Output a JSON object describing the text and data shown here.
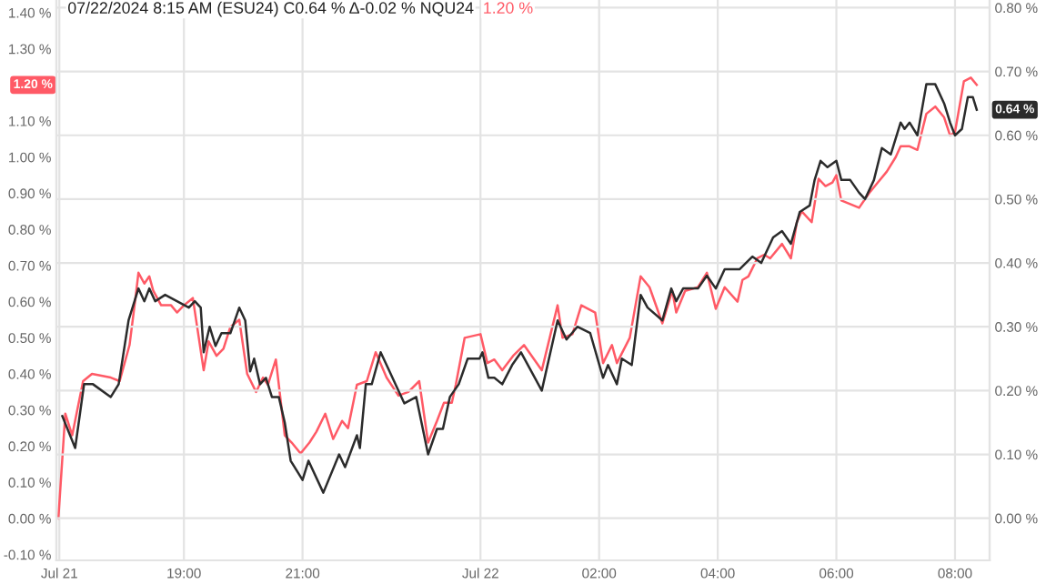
{
  "chart_data": {
    "type": "line",
    "title": "07/22/2024 8:15 AM (ESU24) C0.64 % Δ-0.02 % NQU24",
    "subtitle": "1.20 %",
    "xlim": [
      "2024-07-21T16:51",
      "2024-07-22T08:35"
    ],
    "xticks": [
      {
        "value": "2024-07-21T16:54",
        "label": "Jul 21"
      },
      {
        "value": "2024-07-21T19:00",
        "label": "19:00"
      },
      {
        "value": "2024-07-21T21:00",
        "label": "21:00"
      },
      {
        "value": "2024-07-22T00:00",
        "label": "Jul 22"
      },
      {
        "value": "2024-07-22T02:00",
        "label": "02:00"
      },
      {
        "value": "2024-07-22T04:00",
        "label": "04:00"
      },
      {
        "value": "2024-07-22T06:00",
        "label": "06:00"
      },
      {
        "value": "2024-07-22T08:00",
        "label": "08:00"
      }
    ],
    "ylim": [
      -0.116,
      1.435
    ],
    "yticks": [
      {
        "value": -0.1,
        "label": "-0.10 %"
      },
      {
        "value": 0,
        "label": "0.00 %"
      },
      {
        "value": 0.1,
        "label": "0.10 %"
      },
      {
        "value": 0.2,
        "label": "0.20 %"
      },
      {
        "value": 0.3,
        "label": "0.30 %"
      },
      {
        "value": 0.4,
        "label": "0.40 %"
      },
      {
        "value": 0.5,
        "label": "0.50 %"
      },
      {
        "value": 0.6,
        "label": "0.60 %"
      },
      {
        "value": 0.7,
        "label": "0.70 %"
      },
      {
        "value": 0.8,
        "label": "0.80 %"
      },
      {
        "value": 0.9,
        "label": "0.90 %"
      },
      {
        "value": 1.0,
        "label": "1.00 %"
      },
      {
        "value": 1.1,
        "label": "1.10 %"
      },
      {
        "value": 1.3,
        "label": "1.30 %"
      },
      {
        "value": 1.4,
        "label": "1.40 %"
      }
    ],
    "y2lim": [
      -0.066,
      0.812
    ],
    "y2ticks": [
      {
        "value": 0,
        "label": "0.00 %"
      },
      {
        "value": 0.1,
        "label": "0.10 %"
      },
      {
        "value": 0.2,
        "label": "0.20 %"
      },
      {
        "value": 0.3,
        "label": "0.30 %"
      },
      {
        "value": 0.4,
        "label": "0.40 %"
      },
      {
        "value": 0.5,
        "label": "0.50 %"
      },
      {
        "value": 0.6,
        "label": "0.60 %"
      },
      {
        "value": 0.7,
        "label": "0.70 %"
      },
      {
        "value": 0.8,
        "label": "0.80 %"
      }
    ],
    "grid": true,
    "annotations": [
      "1.20 %",
      "0.64 %"
    ],
    "series": [
      {
        "color": "#ff5a66",
        "axis": "y",
        "x": [
          "2024-07-21T16:53",
          "2024-07-21T17:00",
          "2024-07-21T17:07",
          "2024-07-21T17:18",
          "2024-07-21T17:27",
          "2024-07-21T17:46",
          "2024-07-21T17:55",
          "2024-07-21T18:05",
          "2024-07-21T18:11",
          "2024-07-21T18:14",
          "2024-07-21T18:20",
          "2024-07-21T18:25",
          "2024-07-21T18:29",
          "2024-07-21T18:37",
          "2024-07-21T18:47",
          "2024-07-21T18:53",
          "2024-07-21T19:00",
          "2024-07-21T19:09",
          "2024-07-21T19:20",
          "2024-07-21T19:25",
          "2024-07-21T19:33",
          "2024-07-21T19:40",
          "2024-07-21T19:47",
          "2024-07-21T19:56",
          "2024-07-21T20:04",
          "2024-07-21T20:13",
          "2024-07-21T20:20",
          "2024-07-21T20:25",
          "2024-07-21T20:33",
          "2024-07-21T20:42",
          "2024-07-21T20:49",
          "2024-07-21T20:58",
          "2024-07-21T21:07",
          "2024-07-21T21:14",
          "2024-07-21T21:23",
          "2024-07-21T21:31",
          "2024-07-21T21:40",
          "2024-07-21T21:46",
          "2024-07-21T21:55",
          "2024-07-21T22:05",
          "2024-07-21T22:14",
          "2024-07-21T22:25",
          "2024-07-21T22:37",
          "2024-07-21T22:47",
          "2024-07-21T22:58",
          "2024-07-21T23:07",
          "2024-07-21T23:16",
          "2024-07-21T23:23",
          "2024-07-21T23:31",
          "2024-07-21T23:35",
          "2024-07-21T23:44",
          "2024-07-22T00:00",
          "2024-07-22T00:07",
          "2024-07-22T00:14",
          "2024-07-22T00:22",
          "2024-07-22T00:33",
          "2024-07-22T00:44",
          "2024-07-22T01:02",
          "2024-07-22T01:18",
          "2024-07-22T01:23",
          "2024-07-22T01:33",
          "2024-07-22T01:42",
          "2024-07-22T01:56",
          "2024-07-22T02:04",
          "2024-07-22T02:13",
          "2024-07-22T02:18",
          "2024-07-22T02:31",
          "2024-07-22T02:42",
          "2024-07-22T02:51",
          "2024-07-22T03:04",
          "2024-07-22T03:14",
          "2024-07-22T03:18",
          "2024-07-22T03:27",
          "2024-07-22T03:40",
          "2024-07-22T03:49",
          "2024-07-22T03:58",
          "2024-07-22T04:07",
          "2024-07-22T04:20",
          "2024-07-22T04:25",
          "2024-07-22T04:31",
          "2024-07-22T04:40",
          "2024-07-22T04:47",
          "2024-07-22T04:53",
          "2024-07-22T05:05",
          "2024-07-22T05:14",
          "2024-07-22T05:20",
          "2024-07-22T05:25",
          "2024-07-22T05:35",
          "2024-07-22T05:42",
          "2024-07-22T05:49",
          "2024-07-22T05:56",
          "2024-07-22T06:00",
          "2024-07-22T06:05",
          "2024-07-22T06:14",
          "2024-07-22T06:23",
          "2024-07-22T06:33",
          "2024-07-22T06:42",
          "2024-07-22T06:51",
          "2024-07-22T07:00",
          "2024-07-22T07:05",
          "2024-07-22T07:14",
          "2024-07-22T07:22",
          "2024-07-22T07:31",
          "2024-07-22T07:40",
          "2024-07-22T07:49",
          "2024-07-22T07:55",
          "2024-07-22T08:00",
          "2024-07-22T08:09",
          "2024-07-22T08:16",
          "2024-07-22T08:22"
        ],
        "values": [
          0.0,
          0.29,
          0.23,
          0.38,
          0.4,
          0.39,
          0.38,
          0.48,
          0.61,
          0.68,
          0.65,
          0.67,
          0.63,
          0.59,
          0.59,
          0.57,
          0.59,
          0.61,
          0.41,
          0.49,
          0.45,
          0.47,
          0.53,
          0.55,
          0.4,
          0.35,
          0.39,
          0.37,
          0.44,
          0.23,
          0.21,
          0.18,
          0.21,
          0.24,
          0.29,
          0.22,
          0.27,
          0.25,
          0.37,
          0.38,
          0.46,
          0.39,
          0.34,
          0.35,
          0.38,
          0.21,
          0.27,
          0.32,
          0.32,
          0.37,
          0.5,
          0.51,
          0.43,
          0.44,
          0.41,
          0.45,
          0.48,
          0.41,
          0.59,
          0.5,
          0.51,
          0.59,
          0.57,
          0.43,
          0.48,
          0.43,
          0.5,
          0.67,
          0.64,
          0.54,
          0.63,
          0.57,
          0.63,
          0.64,
          0.68,
          0.58,
          0.64,
          0.6,
          0.66,
          0.67,
          0.72,
          0.73,
          0.72,
          0.76,
          0.72,
          0.82,
          0.85,
          0.82,
          0.94,
          0.92,
          0.93,
          0.95,
          0.88,
          0.87,
          0.86,
          0.9,
          0.93,
          0.96,
          1.0,
          1.03,
          1.03,
          1.02,
          1.12,
          1.14,
          1.11,
          1.06,
          1.07,
          1.21,
          1.22,
          1.2
        ]
      },
      {
        "color": "#2b2b2b",
        "axis": "y2",
        "x": [
          "2024-07-21T16:57",
          "2024-07-21T17:10",
          "2024-07-21T17:19",
          "2024-07-21T17:28",
          "2024-07-21T17:46",
          "2024-07-21T17:54",
          "2024-07-21T18:04",
          "2024-07-21T18:14",
          "2024-07-21T18:20",
          "2024-07-21T18:25",
          "2024-07-21T18:31",
          "2024-07-21T18:41",
          "2024-07-21T18:53",
          "2024-07-21T19:05",
          "2024-07-21T19:11",
          "2024-07-21T19:17",
          "2024-07-21T19:20",
          "2024-07-21T19:26",
          "2024-07-21T19:32",
          "2024-07-21T19:38",
          "2024-07-21T19:47",
          "2024-07-21T19:56",
          "2024-07-21T20:02",
          "2024-07-21T20:07",
          "2024-07-21T20:11",
          "2024-07-21T20:17",
          "2024-07-21T20:23",
          "2024-07-21T20:29",
          "2024-07-21T20:36",
          "2024-07-21T20:42",
          "2024-07-21T20:48",
          "2024-07-21T21:00",
          "2024-07-21T21:06",
          "2024-07-21T21:21",
          "2024-07-21T21:37",
          "2024-07-21T21:43",
          "2024-07-21T21:55",
          "2024-07-21T21:58",
          "2024-07-21T22:04",
          "2024-07-21T22:10",
          "2024-07-21T22:19",
          "2024-07-21T22:28",
          "2024-07-21T22:43",
          "2024-07-21T22:55",
          "2024-07-21T23:07",
          "2024-07-21T23:16",
          "2024-07-21T23:22",
          "2024-07-21T23:29",
          "2024-07-21T23:38",
          "2024-07-21T23:47",
          "2024-07-21T23:59",
          "2024-07-22T00:02",
          "2024-07-22T00:08",
          "2024-07-22T00:14",
          "2024-07-22T00:22",
          "2024-07-22T00:32",
          "2024-07-22T00:41",
          "2024-07-22T01:02",
          "2024-07-22T01:18",
          "2024-07-22T01:27",
          "2024-07-22T01:38",
          "2024-07-22T01:51",
          "2024-07-22T02:04",
          "2024-07-22T02:09",
          "2024-07-22T02:18",
          "2024-07-22T02:23",
          "2024-07-22T02:33",
          "2024-07-22T02:42",
          "2024-07-22T02:49",
          "2024-07-22T03:04",
          "2024-07-22T03:13",
          "2024-07-22T03:18",
          "2024-07-22T03:25",
          "2024-07-22T03:40",
          "2024-07-22T03:49",
          "2024-07-22T03:58",
          "2024-07-22T04:07",
          "2024-07-22T04:22",
          "2024-07-22T04:35",
          "2024-07-22T04:44",
          "2024-07-22T04:56",
          "2024-07-22T05:05",
          "2024-07-22T05:14",
          "2024-07-22T05:23",
          "2024-07-22T05:33",
          "2024-07-22T05:38",
          "2024-07-22T05:44",
          "2024-07-22T05:51",
          "2024-07-22T06:00",
          "2024-07-22T06:05",
          "2024-07-22T06:14",
          "2024-07-22T06:23",
          "2024-07-22T06:29",
          "2024-07-22T06:38",
          "2024-07-22T06:46",
          "2024-07-22T06:55",
          "2024-07-22T07:05",
          "2024-07-22T07:09",
          "2024-07-22T07:14",
          "2024-07-22T07:22",
          "2024-07-22T07:31",
          "2024-07-22T07:40",
          "2024-07-22T07:49",
          "2024-07-22T07:55",
          "2024-07-22T08:00",
          "2024-07-22T08:07",
          "2024-07-22T08:13",
          "2024-07-22T08:18",
          "2024-07-22T08:22"
        ],
        "values": [
          0.16,
          0.11,
          0.21,
          0.21,
          0.19,
          0.21,
          0.31,
          0.36,
          0.34,
          0.36,
          0.34,
          0.35,
          0.34,
          0.33,
          0.34,
          0.33,
          0.26,
          0.3,
          0.27,
          0.29,
          0.29,
          0.33,
          0.31,
          0.23,
          0.25,
          0.21,
          0.22,
          0.19,
          0.19,
          0.15,
          0.09,
          0.06,
          0.09,
          0.04,
          0.1,
          0.08,
          0.13,
          0.11,
          0.21,
          0.21,
          0.26,
          0.23,
          0.18,
          0.19,
          0.1,
          0.14,
          0.14,
          0.19,
          0.21,
          0.25,
          0.25,
          0.26,
          0.22,
          0.22,
          0.21,
          0.24,
          0.26,
          0.2,
          0.31,
          0.28,
          0.3,
          0.29,
          0.22,
          0.24,
          0.21,
          0.25,
          0.24,
          0.35,
          0.33,
          0.31,
          0.36,
          0.34,
          0.36,
          0.36,
          0.38,
          0.36,
          0.39,
          0.39,
          0.41,
          0.4,
          0.44,
          0.45,
          0.43,
          0.48,
          0.49,
          0.53,
          0.56,
          0.55,
          0.56,
          0.53,
          0.53,
          0.51,
          0.5,
          0.53,
          0.58,
          0.57,
          0.62,
          0.61,
          0.62,
          0.6,
          0.68,
          0.68,
          0.65,
          0.62,
          0.6,
          0.61,
          0.66,
          0.66,
          0.64
        ]
      }
    ]
  }
}
